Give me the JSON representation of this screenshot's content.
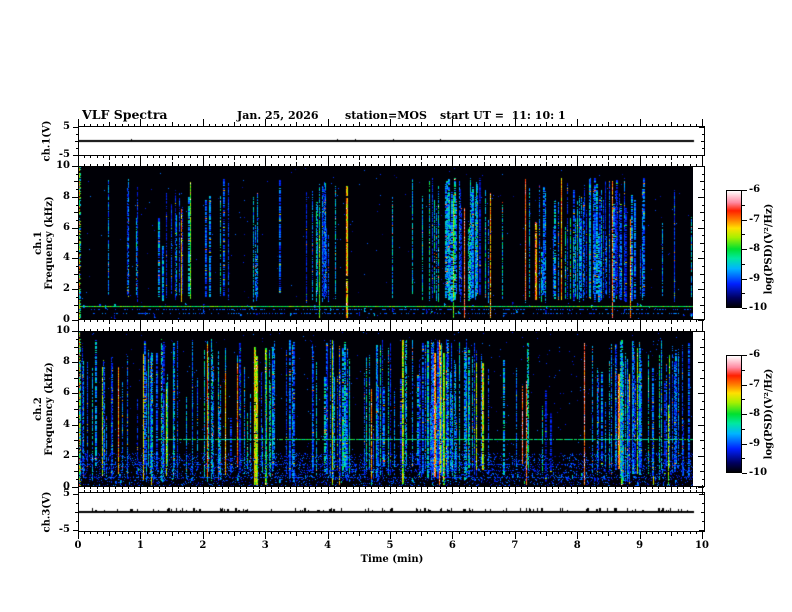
{
  "figure": {
    "title": "VLF Spectra",
    "date": "Jan. 25, 2026",
    "station": "station=MOS",
    "start_ut": "start UT =  11: 10: 1"
  },
  "time_axis": {
    "label": "Time (min)",
    "ticks": [
      0,
      1,
      2,
      3,
      4,
      5,
      6,
      7,
      8,
      9,
      10
    ],
    "minor_step": 0.1,
    "range": [
      0,
      10.05
    ],
    "unit": "min"
  },
  "colorbar": {
    "label": "log(PSD)(V²/Hz)",
    "ticks": [
      -6,
      -7,
      -8,
      -9,
      -10
    ],
    "range": [
      -10,
      -6
    ],
    "stops": [
      [
        0,
        "#000005"
      ],
      [
        0.08,
        "#000060"
      ],
      [
        0.2,
        "#0020ff"
      ],
      [
        0.33,
        "#00b4ff"
      ],
      [
        0.42,
        "#00e8a0"
      ],
      [
        0.5,
        "#00e030"
      ],
      [
        0.6,
        "#a8f000"
      ],
      [
        0.68,
        "#ffe000"
      ],
      [
        0.75,
        "#ff8000"
      ],
      [
        0.83,
        "#ff2000"
      ],
      [
        0.9,
        "#ff88a0"
      ],
      [
        1,
        "#ffffff"
      ]
    ]
  },
  "chart_data": [
    {
      "id": "ch1_voltage",
      "type": "line",
      "ylabel": "ch.1(V)",
      "yticks": [
        5,
        -5
      ],
      "ylim": [
        -5.5,
        5.5
      ],
      "xlim": [
        0,
        10
      ],
      "signal": "constant flat trace at 0 V across full 10 min",
      "value_V": 0,
      "gen": {
        "seed": 11,
        "spikes": 5,
        "spike_max": 1
      }
    },
    {
      "id": "ch1_spectrogram",
      "type": "heatmap",
      "ylabel_line1": "ch.1",
      "ylabel_line2": "Frequency (kHz)",
      "yticks": [
        0,
        2,
        4,
        6,
        8,
        10
      ],
      "ylim": [
        0,
        10
      ],
      "xlim": [
        0,
        10
      ],
      "zlabel": "log(PSD)(V²/Hz)",
      "zlim": [
        -10,
        -6
      ],
      "description": "dense vertical broadband sferic streaks ~1.2-9.3 kHz, mostly blue/cyan with green-red cores, black background; continuous narrowband cyan line near 0.8 kHz; quiet band below 1 kHz with sparse blobs",
      "gen": {
        "seed": 20260125,
        "streaks": 150,
        "clusters": 24,
        "cluster_spread": 16,
        "strong_frac": 0.09,
        "f_low_min": 1.05,
        "f_low_max": 1.7,
        "f_high_max": 9.3,
        "bottom_blobs": 42,
        "speckle": 0.0025,
        "edge_column": true,
        "noise_band": null,
        "h_lines": [
          {
            "f": 0.78,
            "t": 0.5,
            "x0": 0,
            "x1": 1,
            "p": 1
          },
          {
            "f": 0.62,
            "t": 0.25,
            "x0": 0,
            "x1": 1,
            "p": 0.35
          },
          {
            "f": 0.3,
            "t": 0.26,
            "x0": 0.02,
            "x1": 0.98,
            "p": 0.3
          }
        ]
      }
    },
    {
      "id": "ch2_spectrogram",
      "type": "heatmap",
      "ylabel_line1": "ch.2",
      "ylabel_line2": "Frequency (kHz)",
      "yticks": [
        0,
        2,
        4,
        6,
        8,
        10
      ],
      "ylim": [
        0,
        10
      ],
      "xlim": [
        0,
        10
      ],
      "zlabel": "log(PSD)(V²/Hz)",
      "zlim": [
        -10,
        -6
      ],
      "description": "denser broadband streaks 0.3-9.5 kHz with red cores; faint horizontal cyan line near 3 kHz from ~1.3 min onward; diffuse dark-blue noise band below 2 kHz with dashed horizontal rows",
      "gen": {
        "seed": 1971,
        "streaks": 240,
        "clusters": 28,
        "cluster_spread": 18,
        "strong_frac": 0.12,
        "f_low_min": 0.25,
        "f_low_max": 1.4,
        "f_high_max": 9.55,
        "bottom_blobs": 70,
        "speckle": 0.006,
        "edge_column": true,
        "noise_band": {
          "f0": 0.0,
          "f1": 2.1,
          "density": 0.16,
          "t": 0.2
        },
        "h_lines": [
          {
            "f": 3.0,
            "t": 0.45,
            "x0": 0.13,
            "x1": 1,
            "p": 0.88
          },
          {
            "f": 1.35,
            "t": 0.22,
            "x0": 0,
            "x1": 0.85,
            "p": 0.4
          },
          {
            "f": 0.5,
            "t": 0.24,
            "x0": 0,
            "x1": 1,
            "p": 0.4
          },
          {
            "f": 0.95,
            "t": 0.2,
            "x0": 0.3,
            "x1": 0.75,
            "p": 0.35
          }
        ]
      }
    },
    {
      "id": "ch3_voltage",
      "type": "line",
      "ylabel": "ch.3(V)",
      "yticks": [
        5,
        -5
      ],
      "ylim": [
        -5.5,
        5.5
      ],
      "xlim": [
        0,
        10
      ],
      "signal": "flat trace at 0 V with many tiny upward impulse spikes",
      "value_V": 0,
      "gen": {
        "seed": 33,
        "spikes": 110,
        "spike_max": 3
      }
    }
  ]
}
